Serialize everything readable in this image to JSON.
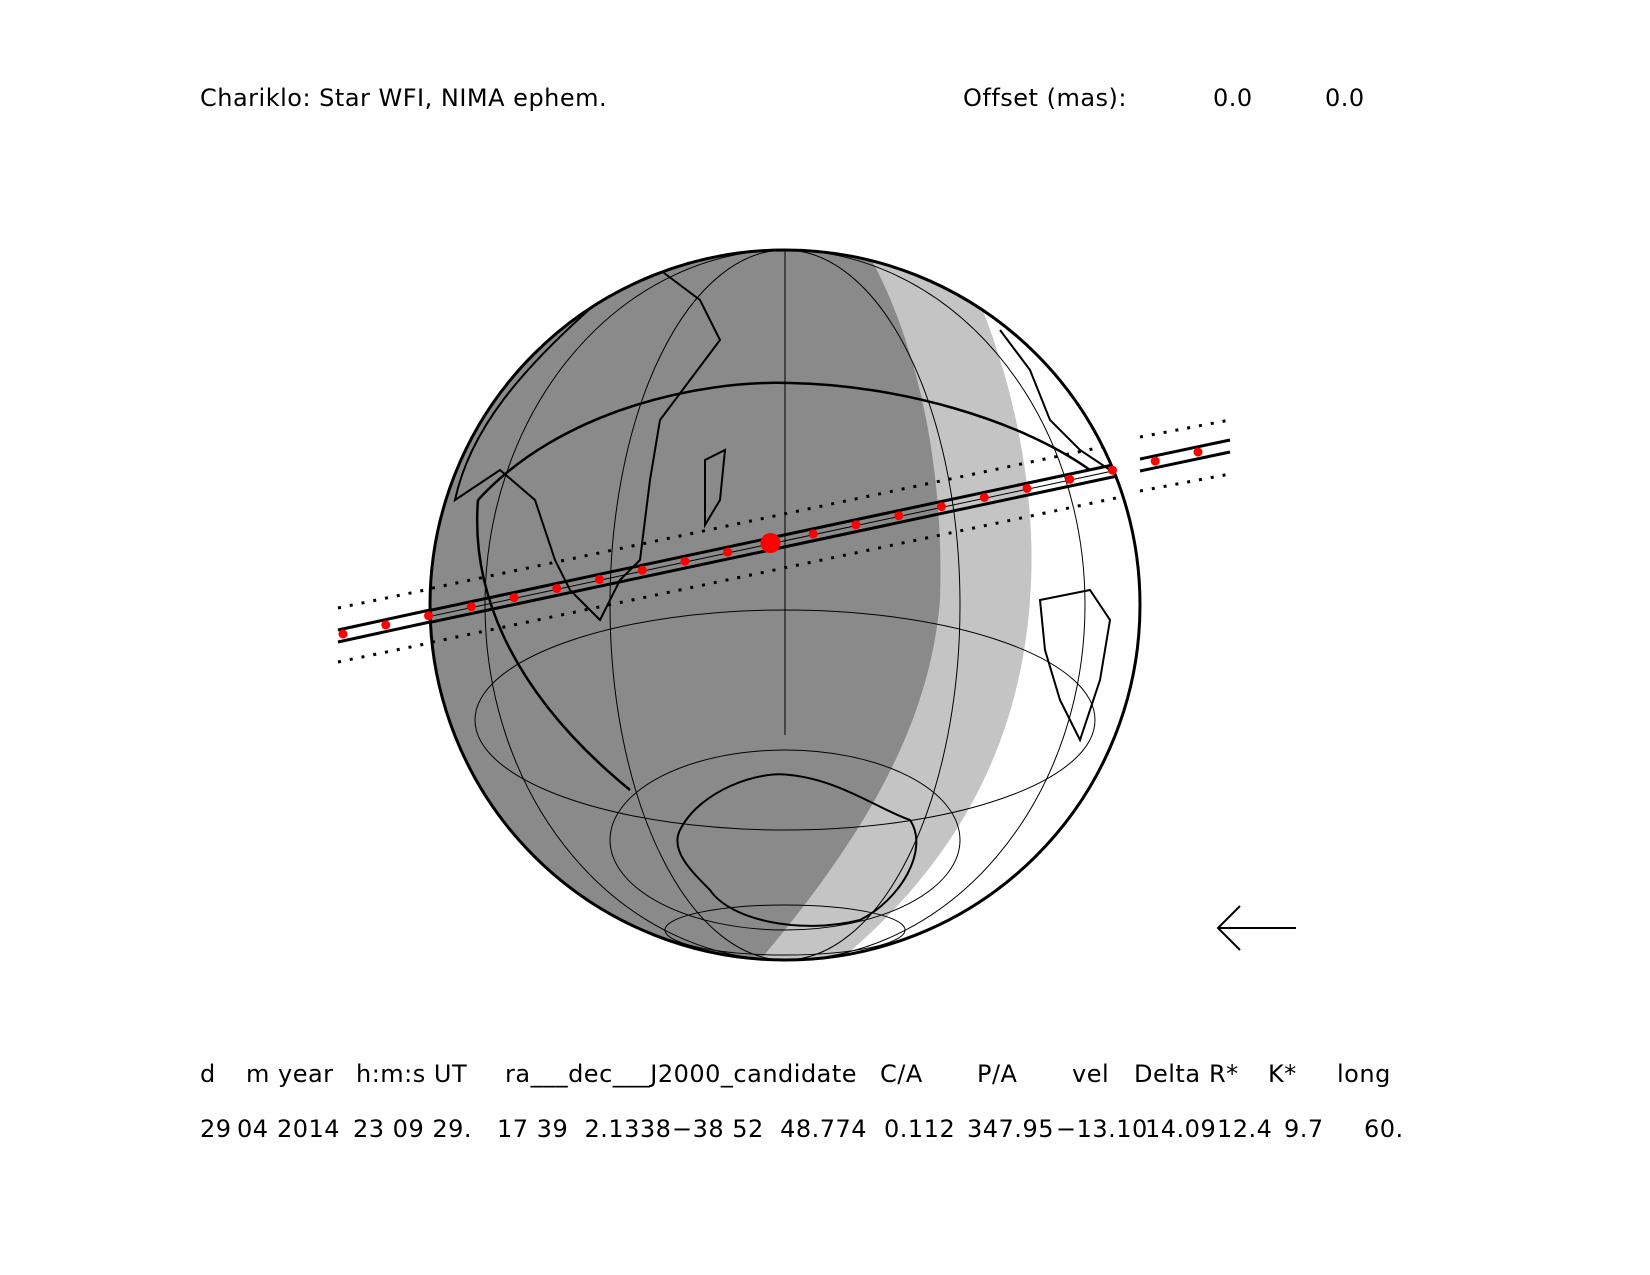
{
  "header": {
    "title": "Chariklo: Star WFI, NIMA ephem.",
    "offset_label": "Offset (mas):",
    "offset_ra": "0.0",
    "offset_dec": "0.0"
  },
  "table": {
    "columns": [
      "d",
      "m year",
      "h:m:s UT",
      "ra___dec___J2000_candidate",
      "C/A",
      "P/A",
      "vel",
      "Delta",
      "R*",
      "K*",
      "long"
    ],
    "values": {
      "d": "29",
      "m": "04",
      "year": "2014",
      "time": "23 09 29.",
      "ra": "17 39  2.1338",
      "dec": "−38 52  48.774",
      "ca": "0.112",
      "pa": "347.95",
      "vel": "−13.10",
      "delta": "14.09",
      "rstar": "12.4",
      "kstar": "9.7",
      "long": "60."
    }
  },
  "map": {
    "colors": {
      "night": "#8a8a8a",
      "twilight": "#c4c4c4",
      "day": "#ffffff",
      "path_points": "#ff0000"
    },
    "direction_arrow": "left-arrow"
  }
}
